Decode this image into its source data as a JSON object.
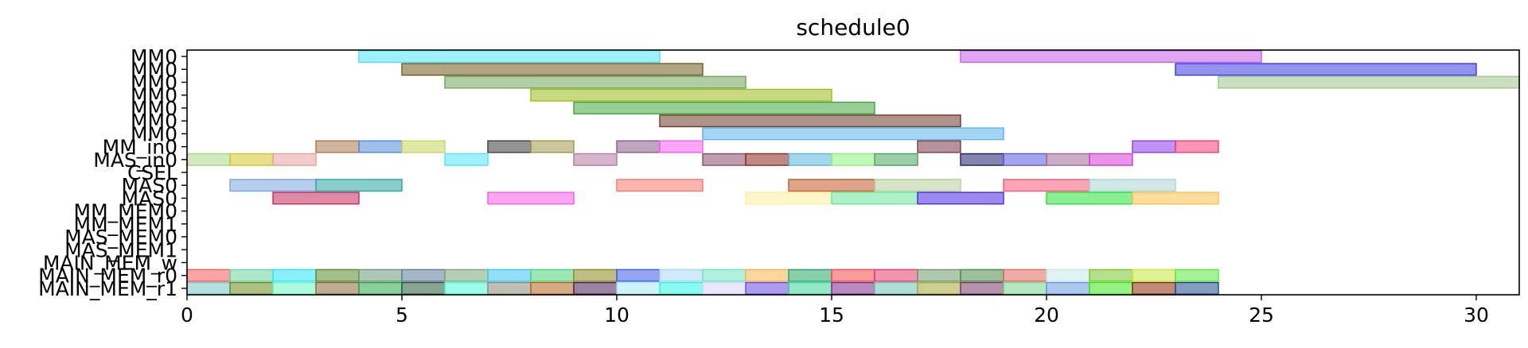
{
  "chart_data": {
    "type": "gantt",
    "title": "schedule0",
    "xlabel": "",
    "ylabel": "",
    "xlim": [
      0,
      31
    ],
    "xticks": [
      0,
      5,
      10,
      15,
      20,
      25,
      30
    ],
    "grid": false,
    "rows": [
      "MM0",
      "MM0",
      "MM0",
      "MM0",
      "MM0",
      "MM0",
      "MM0",
      "MM_in0",
      "MAS_in0",
      "CSEL",
      "MAS0",
      "MAS0",
      "MM_MEM0",
      "MM_MEM1",
      "MAS_MEM0",
      "MAS_MEM1",
      "MAIN_MEM_w",
      "MAIN_MEM_r0",
      "MAIN_MEM_r1"
    ],
    "tasks": [
      {
        "row": 0,
        "start": 4,
        "end": 11,
        "color": "#4ee5f5"
      },
      {
        "row": 0,
        "start": 18,
        "end": 25,
        "color": "#c55ee8"
      },
      {
        "row": 1,
        "start": 5,
        "end": 12,
        "color": "#6f5a1e"
      },
      {
        "row": 1,
        "start": 23,
        "end": 30,
        "color": "#3a3ae0"
      },
      {
        "row": 2,
        "start": 6,
        "end": 13,
        "color": "#6fa55a"
      },
      {
        "row": 2,
        "start": 24,
        "end": 31,
        "color": "#9cc58a"
      },
      {
        "row": 3,
        "start": 8,
        "end": 15,
        "color": "#9cbb1e"
      },
      {
        "row": 4,
        "start": 9,
        "end": 16,
        "color": "#3fa53f"
      },
      {
        "row": 5,
        "start": 11,
        "end": 18,
        "color": "#6b3a2a"
      },
      {
        "row": 6,
        "start": 12,
        "end": 19,
        "color": "#5ab5ea"
      },
      {
        "row": 7,
        "start": 3,
        "end": 4,
        "color": "#a9764a"
      },
      {
        "row": 7,
        "start": 4,
        "end": 5,
        "color": "#4e8ad8"
      },
      {
        "row": 7,
        "start": 5,
        "end": 6,
        "color": "#c9d55e"
      },
      {
        "row": 7,
        "start": 7,
        "end": 8,
        "color": "#3a3a3a"
      },
      {
        "row": 7,
        "start": 8,
        "end": 9,
        "color": "#9a9a4a"
      },
      {
        "row": 7,
        "start": 10,
        "end": 11,
        "color": "#8a5a8a"
      },
      {
        "row": 7,
        "start": 11,
        "end": 12,
        "color": "#f55ef5"
      },
      {
        "row": 7,
        "start": 17,
        "end": 18,
        "color": "#7a3a4a"
      },
      {
        "row": 7,
        "start": 22,
        "end": 23,
        "color": "#8a3ae8"
      },
      {
        "row": 7,
        "start": 23,
        "end": 24,
        "color": "#f53a7a"
      },
      {
        "row": 8,
        "start": 0,
        "end": 1,
        "color": "#a9d58a"
      },
      {
        "row": 8,
        "start": 1,
        "end": 2,
        "color": "#d5c52a"
      },
      {
        "row": 8,
        "start": 2,
        "end": 3,
        "color": "#e8a0a0"
      },
      {
        "row": 8,
        "start": 6,
        "end": 7,
        "color": "#4ee5f5"
      },
      {
        "row": 8,
        "start": 9,
        "end": 10,
        "color": "#b57aa0"
      },
      {
        "row": 8,
        "start": 12,
        "end": 13,
        "color": "#8a4a6a"
      },
      {
        "row": 8,
        "start": 13,
        "end": 14,
        "color": "#8a2a1e"
      },
      {
        "row": 8,
        "start": 14,
        "end": 15,
        "color": "#5ab5e0"
      },
      {
        "row": 8,
        "start": 15,
        "end": 16,
        "color": "#8af57a"
      },
      {
        "row": 8,
        "start": 16,
        "end": 17,
        "color": "#4aa55e"
      },
      {
        "row": 8,
        "start": 18,
        "end": 19,
        "color": "#1e1e6a"
      },
      {
        "row": 8,
        "start": 19,
        "end": 20,
        "color": "#5a5ae0"
      },
      {
        "row": 8,
        "start": 20,
        "end": 21,
        "color": "#a06a9a"
      },
      {
        "row": 8,
        "start": 21,
        "end": 22,
        "color": "#d53ad5"
      },
      {
        "row": 10,
        "start": 1,
        "end": 3,
        "color": "#7ea5e0"
      },
      {
        "row": 10,
        "start": 3,
        "end": 5,
        "color": "#2aa5a5"
      },
      {
        "row": 10,
        "start": 10,
        "end": 12,
        "color": "#f57a6a"
      },
      {
        "row": 10,
        "start": 14,
        "end": 16,
        "color": "#c55a2a"
      },
      {
        "row": 10,
        "start": 16,
        "end": 18,
        "color": "#b5d09a"
      },
      {
        "row": 10,
        "start": 19,
        "end": 21,
        "color": "#f55a7a"
      },
      {
        "row": 10,
        "start": 21,
        "end": 23,
        "color": "#a9d5d5"
      },
      {
        "row": 11,
        "start": 2,
        "end": 4,
        "color": "#c52a5a"
      },
      {
        "row": 11,
        "start": 7,
        "end": 9,
        "color": "#f55ae8"
      },
      {
        "row": 11,
        "start": 13,
        "end": 15,
        "color": "#fdef9a"
      },
      {
        "row": 11,
        "start": 15,
        "end": 17,
        "color": "#6ae59a"
      },
      {
        "row": 11,
        "start": 17,
        "end": 19,
        "color": "#4a2ae0"
      },
      {
        "row": 11,
        "start": 20,
        "end": 22,
        "color": "#2ae03a"
      },
      {
        "row": 11,
        "start": 22,
        "end": 24,
        "color": "#fdc04a"
      },
      {
        "row": 17,
        "start": 0,
        "end": 1,
        "color": "#f55a5a"
      },
      {
        "row": 17,
        "start": 1,
        "end": 2,
        "color": "#6ad5a0"
      },
      {
        "row": 17,
        "start": 2,
        "end": 3,
        "color": "#2ae5f5"
      },
      {
        "row": 17,
        "start": 3,
        "end": 4,
        "color": "#5a8a2a"
      },
      {
        "row": 17,
        "start": 4,
        "end": 5,
        "color": "#6a9a7a"
      },
      {
        "row": 17,
        "start": 5,
        "end": 6,
        "color": "#5a7a9a"
      },
      {
        "row": 17,
        "start": 6,
        "end": 7,
        "color": "#7aaa7a"
      },
      {
        "row": 17,
        "start": 7,
        "end": 8,
        "color": "#3ac5f5"
      },
      {
        "row": 17,
        "start": 8,
        "end": 9,
        "color": "#4ad57a"
      },
      {
        "row": 17,
        "start": 9,
        "end": 10,
        "color": "#8a8a1e"
      },
      {
        "row": 17,
        "start": 10,
        "end": 11,
        "color": "#3a5ae8"
      },
      {
        "row": 17,
        "start": 11,
        "end": 12,
        "color": "#a9d5f5"
      },
      {
        "row": 17,
        "start": 12,
        "end": 13,
        "color": "#6ae5c0"
      },
      {
        "row": 17,
        "start": 13,
        "end": 14,
        "color": "#f5b54a"
      },
      {
        "row": 17,
        "start": 14,
        "end": 15,
        "color": "#2aa56a"
      },
      {
        "row": 17,
        "start": 15,
        "end": 16,
        "color": "#f54a4a"
      },
      {
        "row": 17,
        "start": 16,
        "end": 17,
        "color": "#e83a6a"
      },
      {
        "row": 17,
        "start": 17,
        "end": 18,
        "color": "#6a9a6a"
      },
      {
        "row": 17,
        "start": 18,
        "end": 19,
        "color": "#4a8a4a"
      },
      {
        "row": 17,
        "start": 19,
        "end": 20,
        "color": "#e06a5a"
      },
      {
        "row": 17,
        "start": 20,
        "end": 21,
        "color": "#c5eaea"
      },
      {
        "row": 17,
        "start": 21,
        "end": 22,
        "color": "#7ac52a"
      },
      {
        "row": 17,
        "start": 22,
        "end": 23,
        "color": "#c5e83a"
      },
      {
        "row": 17,
        "start": 23,
        "end": 24,
        "color": "#5ae83a"
      },
      {
        "row": 18,
        "start": 0,
        "end": 1,
        "color": "#7ac5c5"
      },
      {
        "row": 18,
        "start": 1,
        "end": 2,
        "color": "#6a8a1e"
      },
      {
        "row": 18,
        "start": 2,
        "end": 3,
        "color": "#6af5c5"
      },
      {
        "row": 18,
        "start": 3,
        "end": 4,
        "color": "#8a6a3a"
      },
      {
        "row": 18,
        "start": 4,
        "end": 5,
        "color": "#2aa54a"
      },
      {
        "row": 18,
        "start": 5,
        "end": 6,
        "color": "#2a5a3a"
      },
      {
        "row": 18,
        "start": 6,
        "end": 7,
        "color": "#4af5d5"
      },
      {
        "row": 18,
        "start": 7,
        "end": 8,
        "color": "#8a8a7a"
      },
      {
        "row": 18,
        "start": 8,
        "end": 9,
        "color": "#b5641e"
      },
      {
        "row": 18,
        "start": 9,
        "end": 10,
        "color": "#4a1e5a"
      },
      {
        "row": 18,
        "start": 10,
        "end": 11,
        "color": "#a9eaf5"
      },
      {
        "row": 18,
        "start": 11,
        "end": 12,
        "color": "#2af5e0"
      },
      {
        "row": 18,
        "start": 12,
        "end": 13,
        "color": "#d5d5f5"
      },
      {
        "row": 18,
        "start": 13,
        "end": 14,
        "color": "#6a4ae0"
      },
      {
        "row": 18,
        "start": 14,
        "end": 15,
        "color": "#3ad59a"
      },
      {
        "row": 18,
        "start": 15,
        "end": 16,
        "color": "#7a2a8a"
      },
      {
        "row": 18,
        "start": 16,
        "end": 17,
        "color": "#6ac5b5"
      },
      {
        "row": 18,
        "start": 17,
        "end": 18,
        "color": "#a5a53a"
      },
      {
        "row": 18,
        "start": 18,
        "end": 19,
        "color": "#7a3a6a"
      },
      {
        "row": 18,
        "start": 19,
        "end": 20,
        "color": "#7ad58a"
      },
      {
        "row": 18,
        "start": 20,
        "end": 21,
        "color": "#6a9ae0"
      },
      {
        "row": 18,
        "start": 21,
        "end": 22,
        "color": "#3ae81e"
      },
      {
        "row": 18,
        "start": 22,
        "end": 23,
        "color": "#8a2a0a"
      },
      {
        "row": 18,
        "start": 23,
        "end": 24,
        "color": "#1e4a8a"
      }
    ]
  }
}
